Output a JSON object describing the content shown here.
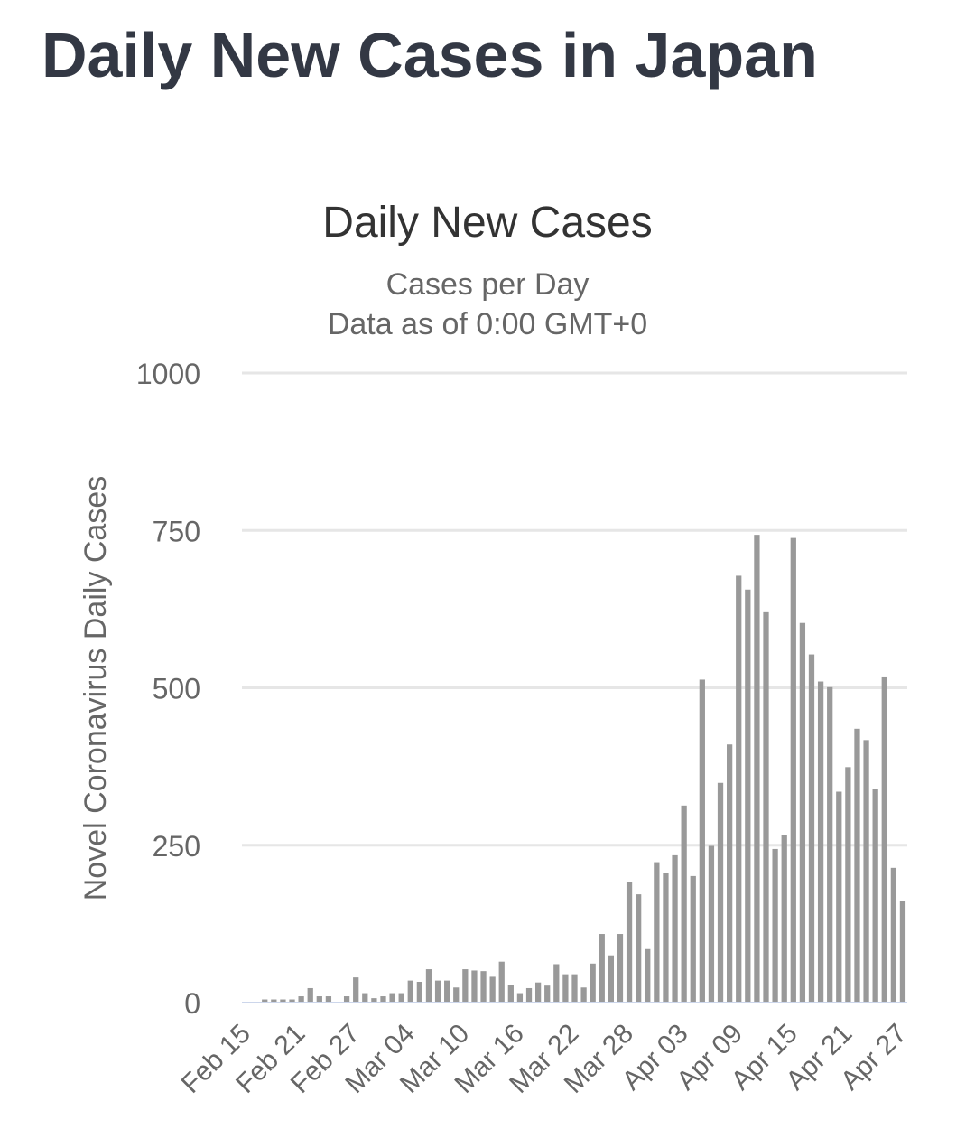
{
  "page": {
    "title": "Daily New Cases in Japan"
  },
  "colors": {
    "title": "#333844",
    "bar": "#999999",
    "grid": "#e6e6e6",
    "axis_line": "#ccd6eb",
    "tick_text": "#666666",
    "chart_title": "#333333"
  },
  "chart_data": {
    "type": "bar",
    "title": "Daily New Cases",
    "subtitle_lines": [
      "Cases per Day",
      "Data as of 0:00 GMT+0"
    ],
    "ylabel": "Novel Coronavirus Daily Cases",
    "xlabel": "",
    "ylim": [
      0,
      1000
    ],
    "yticks": [
      0,
      250,
      500,
      750,
      1000
    ],
    "grid": true,
    "legend": "none",
    "start_date": "Feb 15",
    "xtick_labels": [
      "Feb 15",
      "Feb 21",
      "Feb 27",
      "Mar 04",
      "Mar 10",
      "Mar 16",
      "Mar 22",
      "Mar 28",
      "Apr 03",
      "Apr 09",
      "Apr 15",
      "Apr 21",
      "Apr 27"
    ],
    "xtick_every": 6,
    "series": [
      {
        "name": "Daily Cases",
        "values": [
          0,
          0,
          5,
          5,
          5,
          5,
          10,
          23,
          10,
          10,
          0,
          10,
          40,
          15,
          7,
          10,
          15,
          15,
          35,
          33,
          53,
          35,
          35,
          24,
          53,
          51,
          50,
          41,
          65,
          28,
          15,
          23,
          32,
          27,
          61,
          45,
          45,
          24,
          62,
          109,
          75,
          109,
          192,
          172,
          85,
          223,
          206,
          234,
          313,
          201,
          513,
          249,
          349,
          410,
          678,
          656,
          743,
          620,
          244,
          266,
          738,
          603,
          553,
          510,
          501,
          335,
          374,
          435,
          417,
          339,
          518,
          214,
          162
        ]
      }
    ]
  }
}
